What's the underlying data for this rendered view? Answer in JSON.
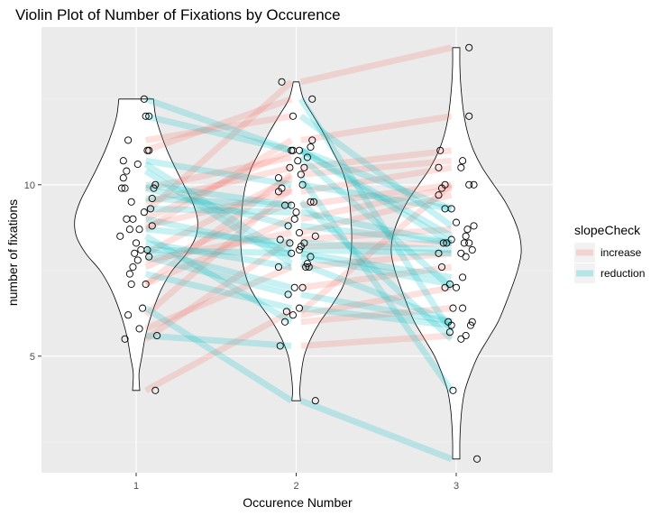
{
  "chart_data": {
    "type": "violin",
    "title": "Violin Plot of Number of Fixations by Occurence",
    "xlabel": "Occurence Number",
    "ylabel": "number of fixations",
    "x_ticks": [
      "1",
      "2",
      "3"
    ],
    "y_ticks": [
      5,
      10
    ],
    "ylim": [
      1.6,
      14.6
    ],
    "grid": true,
    "legend": {
      "title": "slopeCheck",
      "placement": "right",
      "entries": [
        {
          "label": "increase",
          "color": "#F8766D"
        },
        {
          "label": "reduction",
          "color": "#00BFC4"
        }
      ]
    },
    "violins": [
      {
        "x": 1,
        "min": 4.0,
        "max": 12.5,
        "profile": [
          [
            4.0,
            0.05
          ],
          [
            4.5,
            0.04
          ],
          [
            5.0,
            0.08
          ],
          [
            5.5,
            0.12
          ],
          [
            6.0,
            0.18
          ],
          [
            6.5,
            0.26
          ],
          [
            7.0,
            0.36
          ],
          [
            7.5,
            0.5
          ],
          [
            8.0,
            0.7
          ],
          [
            8.5,
            0.83
          ],
          [
            9.0,
            0.85
          ],
          [
            9.5,
            0.78
          ],
          [
            10.0,
            0.66
          ],
          [
            10.5,
            0.54
          ],
          [
            11.0,
            0.43
          ],
          [
            11.5,
            0.34
          ],
          [
            12.0,
            0.27
          ],
          [
            12.5,
            0.24
          ]
        ]
      },
      {
        "x": 2,
        "min": 3.7,
        "max": 13.0,
        "profile": [
          [
            3.7,
            0.06
          ],
          [
            4.0,
            0.05
          ],
          [
            4.5,
            0.07
          ],
          [
            5.0,
            0.11
          ],
          [
            5.5,
            0.2
          ],
          [
            6.0,
            0.33
          ],
          [
            6.5,
            0.5
          ],
          [
            7.0,
            0.64
          ],
          [
            7.5,
            0.72
          ],
          [
            8.0,
            0.76
          ],
          [
            8.5,
            0.77
          ],
          [
            9.0,
            0.76
          ],
          [
            9.5,
            0.74
          ],
          [
            10.0,
            0.7
          ],
          [
            10.5,
            0.62
          ],
          [
            11.0,
            0.5
          ],
          [
            11.5,
            0.38
          ],
          [
            12.0,
            0.24
          ],
          [
            12.5,
            0.1
          ],
          [
            13.0,
            0.04
          ]
        ]
      },
      {
        "x": 3,
        "min": 2.0,
        "max": 14.0,
        "profile": [
          [
            2.0,
            0.05
          ],
          [
            2.5,
            0.05
          ],
          [
            3.0,
            0.06
          ],
          [
            3.5,
            0.08
          ],
          [
            4.0,
            0.12
          ],
          [
            4.5,
            0.2
          ],
          [
            5.0,
            0.3
          ],
          [
            5.5,
            0.44
          ],
          [
            6.0,
            0.58
          ],
          [
            6.5,
            0.68
          ],
          [
            7.0,
            0.77
          ],
          [
            7.5,
            0.85
          ],
          [
            8.0,
            0.9
          ],
          [
            8.5,
            0.88
          ],
          [
            9.0,
            0.8
          ],
          [
            9.5,
            0.68
          ],
          [
            10.0,
            0.52
          ],
          [
            10.5,
            0.36
          ],
          [
            11.0,
            0.24
          ],
          [
            11.5,
            0.16
          ],
          [
            12.0,
            0.11
          ],
          [
            12.5,
            0.08
          ],
          [
            13.0,
            0.06
          ],
          [
            13.5,
            0.05
          ],
          [
            14.0,
            0.05
          ]
        ]
      }
    ],
    "points": [
      {
        "x": 0.93,
        "y": 5.5
      },
      {
        "x": 1.02,
        "y": 5.8
      },
      {
        "x": 0.95,
        "y": 6.2
      },
      {
        "x": 1.04,
        "y": 6.4
      },
      {
        "x": 0.97,
        "y": 7.1
      },
      {
        "x": 1.06,
        "y": 7.1
      },
      {
        "x": 0.96,
        "y": 7.4
      },
      {
        "x": 0.98,
        "y": 7.6
      },
      {
        "x": 1.01,
        "y": 7.8
      },
      {
        "x": 1.08,
        "y": 7.9
      },
      {
        "x": 0.99,
        "y": 8.0
      },
      {
        "x": 1.03,
        "y": 8.1
      },
      {
        "x": 1.07,
        "y": 8.1
      },
      {
        "x": 1.0,
        "y": 8.3
      },
      {
        "x": 0.9,
        "y": 8.5
      },
      {
        "x": 0.96,
        "y": 8.7
      },
      {
        "x": 1.02,
        "y": 8.7
      },
      {
        "x": 1.1,
        "y": 8.8
      },
      {
        "x": 0.98,
        "y": 9.0
      },
      {
        "x": 0.94,
        "y": 9.0
      },
      {
        "x": 1.05,
        "y": 9.2
      },
      {
        "x": 1.09,
        "y": 9.3
      },
      {
        "x": 0.97,
        "y": 9.5
      },
      {
        "x": 1.1,
        "y": 9.6
      },
      {
        "x": 0.91,
        "y": 9.9
      },
      {
        "x": 0.93,
        "y": 9.9
      },
      {
        "x": 1.11,
        "y": 9.9
      },
      {
        "x": 1.12,
        "y": 10.0
      },
      {
        "x": 0.92,
        "y": 10.2
      },
      {
        "x": 0.94,
        "y": 10.4
      },
      {
        "x": 1.01,
        "y": 10.6
      },
      {
        "x": 0.92,
        "y": 10.7
      },
      {
        "x": 1.07,
        "y": 11.0
      },
      {
        "x": 1.08,
        "y": 11.0
      },
      {
        "x": 0.95,
        "y": 11.3
      },
      {
        "x": 1.06,
        "y": 12.0
      },
      {
        "x": 1.08,
        "y": 12.0
      },
      {
        "x": 1.05,
        "y": 12.5
      },
      {
        "x": 1.13,
        "y": 5.6
      },
      {
        "x": 1.12,
        "y": 4.0
      },
      {
        "x": 1.9,
        "y": 5.3
      },
      {
        "x": 1.93,
        "y": 6.0
      },
      {
        "x": 1.98,
        "y": 6.2
      },
      {
        "x": 1.94,
        "y": 6.3
      },
      {
        "x": 2.02,
        "y": 6.4
      },
      {
        "x": 1.95,
        "y": 6.8
      },
      {
        "x": 2.04,
        "y": 7.0
      },
      {
        "x": 1.99,
        "y": 7.0
      },
      {
        "x": 2.06,
        "y": 7.6
      },
      {
        "x": 2.08,
        "y": 7.6
      },
      {
        "x": 1.89,
        "y": 7.6
      },
      {
        "x": 2.07,
        "y": 7.7
      },
      {
        "x": 2.09,
        "y": 7.9
      },
      {
        "x": 1.97,
        "y": 8.0
      },
      {
        "x": 2.02,
        "y": 8.1
      },
      {
        "x": 2.03,
        "y": 8.2
      },
      {
        "x": 1.96,
        "y": 8.3
      },
      {
        "x": 2.05,
        "y": 8.3
      },
      {
        "x": 1.9,
        "y": 8.4
      },
      {
        "x": 2.12,
        "y": 8.5
      },
      {
        "x": 2.02,
        "y": 8.6
      },
      {
        "x": 1.95,
        "y": 8.8
      },
      {
        "x": 1.99,
        "y": 9.0
      },
      {
        "x": 2.0,
        "y": 9.2
      },
      {
        "x": 1.93,
        "y": 9.4
      },
      {
        "x": 1.97,
        "y": 9.4
      },
      {
        "x": 2.09,
        "y": 9.5
      },
      {
        "x": 2.11,
        "y": 9.5
      },
      {
        "x": 1.89,
        "y": 9.8
      },
      {
        "x": 1.91,
        "y": 9.9
      },
      {
        "x": 2.04,
        "y": 10.0
      },
      {
        "x": 1.89,
        "y": 10.2
      },
      {
        "x": 2.03,
        "y": 10.3
      },
      {
        "x": 2.05,
        "y": 10.5
      },
      {
        "x": 1.96,
        "y": 10.5
      },
      {
        "x": 2.01,
        "y": 10.7
      },
      {
        "x": 2.07,
        "y": 10.8
      },
      {
        "x": 2.02,
        "y": 11.0
      },
      {
        "x": 1.98,
        "y": 11.0
      },
      {
        "x": 1.97,
        "y": 11.0
      },
      {
        "x": 2.09,
        "y": 11.1
      },
      {
        "x": 2.1,
        "y": 11.3
      },
      {
        "x": 1.98,
        "y": 12.0
      },
      {
        "x": 2.1,
        "y": 12.5
      },
      {
        "x": 1.91,
        "y": 13.0
      },
      {
        "x": 2.12,
        "y": 3.7
      },
      {
        "x": 2.98,
        "y": 4.0
      },
      {
        "x": 3.03,
        "y": 5.5
      },
      {
        "x": 3.06,
        "y": 5.6
      },
      {
        "x": 2.96,
        "y": 5.7
      },
      {
        "x": 2.97,
        "y": 5.9
      },
      {
        "x": 3.09,
        "y": 5.9
      },
      {
        "x": 3.1,
        "y": 6.0
      },
      {
        "x": 2.95,
        "y": 6.0
      },
      {
        "x": 2.98,
        "y": 6.4
      },
      {
        "x": 3.04,
        "y": 6.4
      },
      {
        "x": 3.0,
        "y": 7.0
      },
      {
        "x": 2.93,
        "y": 7.0
      },
      {
        "x": 2.96,
        "y": 7.1
      },
      {
        "x": 3.04,
        "y": 7.3
      },
      {
        "x": 2.91,
        "y": 7.6
      },
      {
        "x": 3.06,
        "y": 7.9
      },
      {
        "x": 2.89,
        "y": 8.0
      },
      {
        "x": 3.03,
        "y": 8.0
      },
      {
        "x": 3.1,
        "y": 8.1
      },
      {
        "x": 2.92,
        "y": 8.3
      },
      {
        "x": 2.94,
        "y": 8.3
      },
      {
        "x": 3.05,
        "y": 8.3
      },
      {
        "x": 3.08,
        "y": 8.3
      },
      {
        "x": 2.97,
        "y": 8.4
      },
      {
        "x": 3.06,
        "y": 8.5
      },
      {
        "x": 3.07,
        "y": 8.7
      },
      {
        "x": 3.11,
        "y": 8.8
      },
      {
        "x": 2.93,
        "y": 9.3
      },
      {
        "x": 2.97,
        "y": 9.3
      },
      {
        "x": 2.89,
        "y": 9.7
      },
      {
        "x": 2.91,
        "y": 9.9
      },
      {
        "x": 3.08,
        "y": 10.0
      },
      {
        "x": 3.11,
        "y": 10.0
      },
      {
        "x": 2.93,
        "y": 10.0
      },
      {
        "x": 2.89,
        "y": 10.5
      },
      {
        "x": 3.03,
        "y": 10.5
      },
      {
        "x": 3.04,
        "y": 10.7
      },
      {
        "x": 2.9,
        "y": 11.0
      },
      {
        "x": 3.08,
        "y": 12.0
      },
      {
        "x": 3.08,
        "y": 14.0
      },
      {
        "x": 3.13,
        "y": 2.0
      },
      {
        "x": 3.0,
        "y": 8.9
      }
    ],
    "lines": [
      {
        "y1": 5.5,
        "y2": 8.4,
        "slope": "increase"
      },
      {
        "y1": 5.8,
        "y2": 7.6,
        "slope": "increase"
      },
      {
        "y1": 6.2,
        "y2": 9.9,
        "slope": "increase"
      },
      {
        "y1": 7.1,
        "y2": 10.3,
        "slope": "increase"
      },
      {
        "y1": 7.1,
        "y2": 9.0,
        "slope": "increase"
      },
      {
        "y1": 7.6,
        "y2": 9.5,
        "slope": "increase"
      },
      {
        "y1": 7.8,
        "y2": 8.6,
        "slope": "increase"
      },
      {
        "y1": 8.0,
        "y2": 10.2,
        "slope": "increase"
      },
      {
        "y1": 8.7,
        "y2": 11.3,
        "slope": "increase"
      },
      {
        "y1": 8.8,
        "y2": 9.8,
        "slope": "increase"
      },
      {
        "y1": 9.0,
        "y2": 11.0,
        "slope": "increase"
      },
      {
        "y1": 9.2,
        "y2": 13.0,
        "slope": "increase"
      },
      {
        "y1": 9.5,
        "y2": 10.5,
        "slope": "increase"
      },
      {
        "y1": 9.9,
        "y2": 10.8,
        "slope": "increase"
      },
      {
        "y1": 11.0,
        "y2": 12.5,
        "slope": "increase"
      },
      {
        "y1": 11.3,
        "y2": 12.0,
        "slope": "increase"
      },
      {
        "y1": 4.0,
        "y2": 6.3,
        "slope": "increase"
      },
      {
        "y1": 6.4,
        "y2": 3.7,
        "slope": "reduction"
      },
      {
        "y1": 7.4,
        "y2": 6.4,
        "slope": "reduction"
      },
      {
        "y1": 7.9,
        "y2": 6.8,
        "slope": "reduction"
      },
      {
        "y1": 8.1,
        "y2": 7.0,
        "slope": "reduction"
      },
      {
        "y1": 8.1,
        "y2": 8.0,
        "slope": "reduction"
      },
      {
        "y1": 8.3,
        "y2": 7.6,
        "slope": "reduction"
      },
      {
        "y1": 8.5,
        "y2": 6.0,
        "slope": "reduction"
      },
      {
        "y1": 8.7,
        "y2": 8.3,
        "slope": "reduction"
      },
      {
        "y1": 9.0,
        "y2": 8.1,
        "slope": "reduction"
      },
      {
        "y1": 9.3,
        "y2": 9.2,
        "slope": "reduction"
      },
      {
        "y1": 9.6,
        "y2": 9.4,
        "slope": "reduction"
      },
      {
        "y1": 9.9,
        "y2": 8.8,
        "slope": "reduction"
      },
      {
        "y1": 10.0,
        "y2": 9.4,
        "slope": "reduction"
      },
      {
        "y1": 10.4,
        "y2": 7.7,
        "slope": "reduction"
      },
      {
        "y1": 10.6,
        "y2": 7.9,
        "slope": "reduction"
      },
      {
        "y1": 10.7,
        "y2": 10.0,
        "slope": "reduction"
      },
      {
        "y1": 12.0,
        "y2": 11.0,
        "slope": "reduction"
      },
      {
        "y1": 12.5,
        "y2": 11.0,
        "slope": "reduction"
      },
      {
        "y1": 5.6,
        "y2": 5.3,
        "slope": "reduction"
      },
      {
        "y1": 5.3,
        "y2": 5.6,
        "slope": "increase"
      },
      {
        "y1": 6.0,
        "y2": 6.4,
        "slope": "increase"
      },
      {
        "y1": 6.2,
        "y2": 7.0,
        "slope": "increase"
      },
      {
        "y1": 7.0,
        "y2": 7.6,
        "slope": "increase"
      },
      {
        "y1": 7.6,
        "y2": 8.0,
        "slope": "increase"
      },
      {
        "y1": 8.2,
        "y2": 8.3,
        "slope": "increase"
      },
      {
        "y1": 8.4,
        "y2": 8.7,
        "slope": "increase"
      },
      {
        "y1": 8.6,
        "y2": 9.7,
        "slope": "increase"
      },
      {
        "y1": 9.0,
        "y2": 9.9,
        "slope": "increase"
      },
      {
        "y1": 9.4,
        "y2": 10.0,
        "slope": "increase"
      },
      {
        "y1": 9.8,
        "y2": 10.5,
        "slope": "increase"
      },
      {
        "y1": 10.3,
        "y2": 10.7,
        "slope": "increase"
      },
      {
        "y1": 10.5,
        "y2": 11.0,
        "slope": "increase"
      },
      {
        "y1": 11.3,
        "y2": 12.0,
        "slope": "increase"
      },
      {
        "y1": 13.0,
        "y2": 14.0,
        "slope": "increase"
      },
      {
        "y1": 6.3,
        "y2": 10.0,
        "slope": "increase"
      },
      {
        "y1": 3.7,
        "y2": 2.0,
        "slope": "reduction"
      },
      {
        "y1": 6.4,
        "y2": 5.9,
        "slope": "reduction"
      },
      {
        "y1": 6.8,
        "y2": 6.0,
        "slope": "reduction"
      },
      {
        "y1": 7.7,
        "y2": 6.0,
        "slope": "reduction"
      },
      {
        "y1": 7.9,
        "y2": 7.1,
        "slope": "reduction"
      },
      {
        "y1": 8.0,
        "y2": 7.3,
        "slope": "reduction"
      },
      {
        "y1": 8.1,
        "y2": 8.0,
        "slope": "reduction"
      },
      {
        "y1": 8.3,
        "y2": 8.1,
        "slope": "reduction"
      },
      {
        "y1": 8.8,
        "y2": 8.3,
        "slope": "reduction"
      },
      {
        "y1": 9.2,
        "y2": 8.3,
        "slope": "reduction"
      },
      {
        "y1": 9.5,
        "y2": 5.5,
        "slope": "reduction"
      },
      {
        "y1": 10.0,
        "y2": 9.3,
        "slope": "reduction"
      },
      {
        "y1": 10.2,
        "y2": 4.0,
        "slope": "reduction"
      },
      {
        "y1": 10.8,
        "y2": 7.0,
        "slope": "reduction"
      },
      {
        "y1": 11.0,
        "y2": 8.3,
        "slope": "reduction"
      },
      {
        "y1": 11.0,
        "y2": 8.5,
        "slope": "reduction"
      },
      {
        "y1": 11.0,
        "y2": 9.3,
        "slope": "reduction"
      },
      {
        "y1": 12.0,
        "y2": 8.8,
        "slope": "reduction"
      },
      {
        "y1": 12.5,
        "y2": 5.7,
        "slope": "reduction"
      }
    ],
    "palette": {
      "panel": "#EBEBEB",
      "grid_major": "#FFFFFF",
      "grid_minor": "#F2F2F2",
      "violin_fill": "#FFFFFF",
      "violin_stroke": "#000000",
      "point_stroke": "#000000",
      "tick_color": "#333333",
      "legend_key_bg": "#F2F2F2"
    }
  }
}
